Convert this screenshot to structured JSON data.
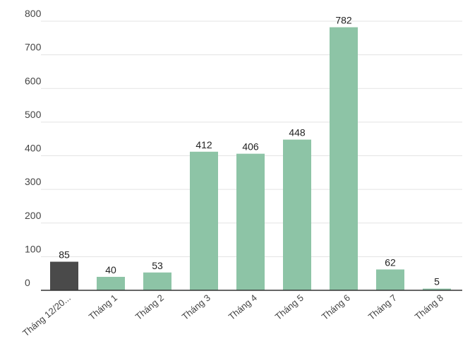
{
  "chart_data": {
    "type": "bar",
    "title": "",
    "xlabel": "",
    "ylabel": "",
    "ylim": [
      0,
      800
    ],
    "yticks": [
      0,
      100,
      200,
      300,
      400,
      500,
      600,
      700,
      800
    ],
    "grid": true,
    "legend": "none",
    "categories": [
      "Tháng 12/20...",
      "Tháng 1",
      "Tháng 2",
      "Tháng 3",
      "Tháng 4",
      "Tháng 5",
      "Tháng 6",
      "Tháng 7",
      "Tháng 8"
    ],
    "values": [
      85,
      40,
      53,
      412,
      406,
      448,
      782,
      62,
      5
    ],
    "colors": [
      "#4a4a4a",
      "#8dc4a6",
      "#8dc4a6",
      "#8dc4a6",
      "#8dc4a6",
      "#8dc4a6",
      "#8dc4a6",
      "#8dc4a6",
      "#8dc4a6"
    ]
  }
}
